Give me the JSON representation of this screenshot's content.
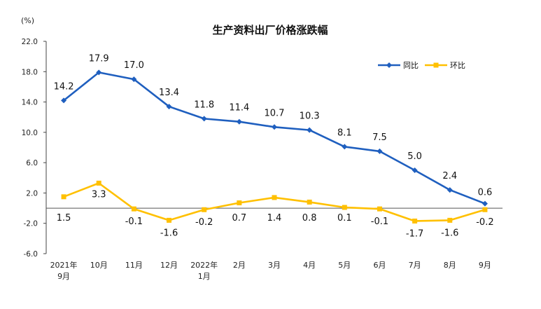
{
  "chart_data": {
    "type": "line",
    "title": "生产资料出厂价格涨跌幅",
    "unit": "(%)",
    "categories": [
      [
        "2021年",
        "9月"
      ],
      [
        "10月"
      ],
      [
        "11月"
      ],
      [
        "12月"
      ],
      [
        "2022年",
        "1月"
      ],
      [
        "2月"
      ],
      [
        "3月"
      ],
      [
        "4月"
      ],
      [
        "5月"
      ],
      [
        "6月"
      ],
      [
        "7月"
      ],
      [
        "8月"
      ],
      [
        "9月"
      ]
    ],
    "ylim": [
      -6.0,
      22.0
    ],
    "yticks": [
      "22.0",
      "18.0",
      "14.0",
      "10.0",
      "6.0",
      "2.0",
      "-2.0",
      "-6.0"
    ],
    "ytick_values": [
      22,
      18,
      14,
      10,
      6,
      2,
      -2,
      -6
    ],
    "series": [
      {
        "name": "同比",
        "color": "#1f5fbf",
        "values": [
          14.2,
          17.9,
          17.0,
          13.4,
          11.8,
          11.4,
          10.7,
          10.3,
          8.1,
          7.5,
          5.0,
          2.4,
          0.6
        ],
        "labels": [
          "14.2",
          "17.9",
          "17.0",
          "13.4",
          "11.8",
          "11.4",
          "10.7",
          "10.3",
          "8.1",
          "7.5",
          "5.0",
          "2.4",
          "0.6"
        ]
      },
      {
        "name": "环比",
        "color": "#ffc000",
        "values": [
          1.5,
          3.3,
          -0.1,
          -1.6,
          -0.2,
          0.7,
          1.4,
          0.8,
          0.1,
          -0.1,
          -1.7,
          -1.6,
          -0.2
        ],
        "labels": [
          "1.5",
          "3.3",
          "-0.1",
          "-1.6",
          "-0.2",
          "0.7",
          "1.4",
          "0.8",
          "0.1",
          "-0.1",
          "-1.7",
          "-1.6",
          "-0.2"
        ]
      }
    ],
    "legend": "top-right",
    "grid": false
  }
}
